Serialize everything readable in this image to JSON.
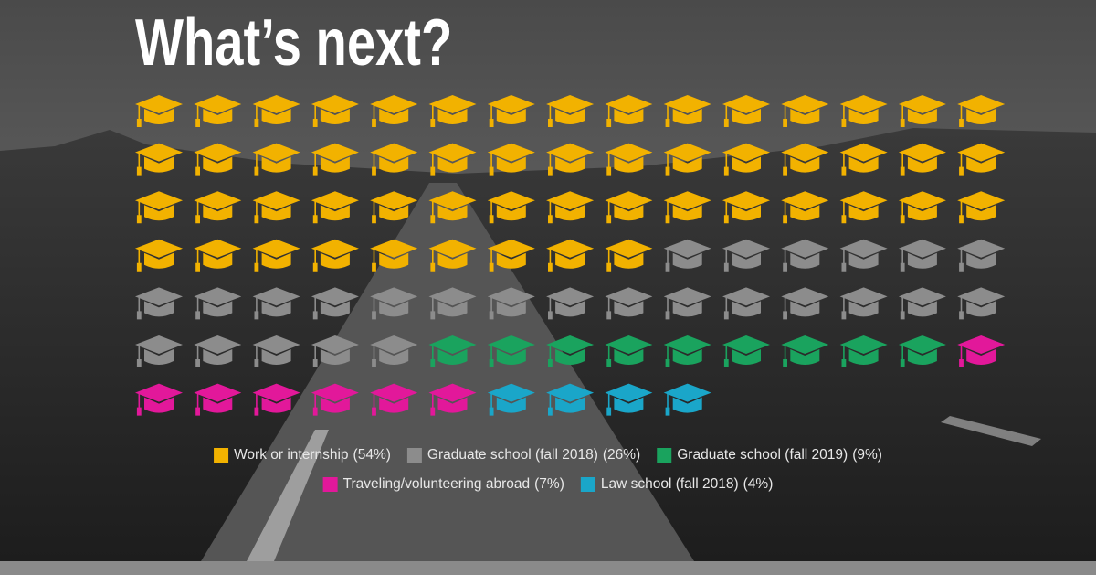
{
  "chart_data": {
    "type": "pictogram",
    "title": "What’s next?",
    "per_row": 15,
    "series": [
      {
        "name": "Work or internship",
        "value": 54,
        "value_label": "(54%)",
        "color": "#f2b200"
      },
      {
        "name": "Graduate school (fall 2018)",
        "value": 26,
        "value_label": "(26%)",
        "color": "#8c8c8c"
      },
      {
        "name": "Graduate school (fall 2019)",
        "value": 9,
        "value_label": "(9%)",
        "color": "#1aa35e"
      },
      {
        "name": "Traveling/volunteering abroad",
        "value": 7,
        "value_label": "(7%)",
        "color": "#e2189a"
      },
      {
        "name": "Law school (fall 2018)",
        "value": 4,
        "value_label": "(4%)",
        "color": "#1aa6c9"
      }
    ]
  }
}
